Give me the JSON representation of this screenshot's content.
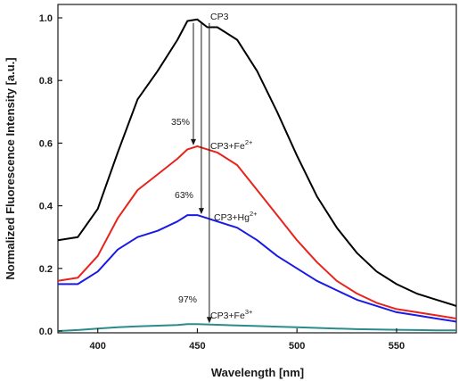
{
  "chart_data": {
    "type": "line",
    "title": "",
    "xlabel": "Wavelength [nm]",
    "ylabel": "Normalized Fluorescence Intensity [a.u.]",
    "xlim": [
      380,
      580
    ],
    "ylim": [
      0.0,
      1.0
    ],
    "x_ticks": [
      400,
      450,
      500,
      550
    ],
    "y_ticks": [
      0.0,
      0.2,
      0.4,
      0.6,
      0.8,
      1.0
    ],
    "x_tick_labels": [
      "400",
      "450",
      "500",
      "550"
    ],
    "y_tick_labels": [
      "0.0",
      "0.2",
      "0.4",
      "0.6",
      "0.8",
      "1.0"
    ],
    "grid": false,
    "legend": "none",
    "x": [
      380,
      390,
      400,
      410,
      420,
      430,
      440,
      445,
      450,
      455,
      460,
      470,
      480,
      490,
      500,
      510,
      520,
      530,
      540,
      550,
      560,
      570,
      580
    ],
    "series": [
      {
        "name": "CP3",
        "color": "#000000",
        "values": [
          0.29,
          0.3,
          0.39,
          0.57,
          0.74,
          0.83,
          0.93,
          0.99,
          0.995,
          0.97,
          0.97,
          0.93,
          0.83,
          0.7,
          0.56,
          0.43,
          0.33,
          0.25,
          0.19,
          0.15,
          0.12,
          0.1,
          0.08
        ]
      },
      {
        "name": "CP3+Fe",
        "color": "#e8231c",
        "values": [
          0.16,
          0.17,
          0.24,
          0.36,
          0.45,
          0.5,
          0.55,
          0.58,
          0.59,
          0.58,
          0.57,
          0.53,
          0.45,
          0.37,
          0.29,
          0.22,
          0.16,
          0.12,
          0.09,
          0.07,
          0.06,
          0.05,
          0.04
        ]
      },
      {
        "name": "CP3+Hg",
        "color": "#1a1ae6",
        "values": [
          0.15,
          0.15,
          0.19,
          0.26,
          0.3,
          0.32,
          0.35,
          0.37,
          0.37,
          0.36,
          0.35,
          0.33,
          0.29,
          0.24,
          0.2,
          0.16,
          0.13,
          0.1,
          0.08,
          0.06,
          0.05,
          0.04,
          0.03
        ]
      },
      {
        "name": "CP3+Fe",
        "color": "#2a8c8c",
        "values": [
          0.0,
          0.003,
          0.008,
          0.012,
          0.015,
          0.017,
          0.019,
          0.022,
          0.022,
          0.021,
          0.02,
          0.018,
          0.016,
          0.014,
          0.012,
          0.01,
          0.008,
          0.006,
          0.005,
          0.004,
          0.003,
          0.002,
          0.002
        ]
      }
    ],
    "annotations": [
      {
        "id": "label_cp3",
        "text": "CP3",
        "sup": ""
      },
      {
        "id": "label_fe2",
        "text": "CP3+Fe",
        "sup": "2+"
      },
      {
        "id": "label_hg",
        "text": "CP3+Hg",
        "sup": "2+"
      },
      {
        "id": "label_fe3",
        "text": "CP3+Fe",
        "sup": "3+"
      },
      {
        "id": "pct_35",
        "text": "35%"
      },
      {
        "id": "pct_63",
        "text": "63%"
      },
      {
        "id": "pct_97",
        "text": "97%"
      }
    ]
  }
}
